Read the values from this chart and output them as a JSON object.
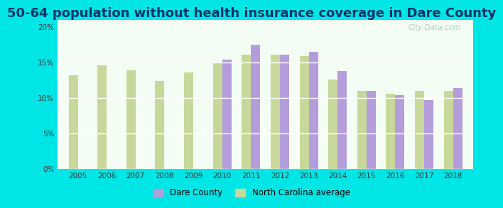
{
  "title": "50-64 population without health insurance coverage in Dare County",
  "years": [
    2005,
    2006,
    2007,
    2008,
    2009,
    2010,
    2011,
    2012,
    2013,
    2014,
    2015,
    2016,
    2017,
    2018
  ],
  "dare_county": [
    null,
    null,
    null,
    null,
    null,
    15.4,
    17.5,
    16.1,
    16.5,
    13.8,
    11.0,
    10.4,
    9.7,
    11.4
  ],
  "nc_average": [
    13.2,
    14.6,
    13.9,
    12.4,
    13.6,
    15.0,
    16.1,
    16.1,
    15.9,
    12.6,
    11.0,
    10.6,
    11.0,
    11.0
  ],
  "dare_color": "#b39ddb",
  "nc_color": "#c8d89a",
  "background_color": "#00e5e5",
  "plot_bg_top": "#e8f5e8",
  "plot_bg_bottom": "#f5fff5",
  "ylim": [
    0,
    21
  ],
  "yticks": [
    0,
    5,
    10,
    15,
    20
  ],
  "ytick_labels": [
    "0%",
    "5%",
    "10%",
    "15%",
    "20%"
  ],
  "title_fontsize": 13,
  "bar_width": 0.32,
  "legend_dare": "Dare County",
  "legend_nc": "North Carolina average",
  "watermark": "City-Data.com"
}
